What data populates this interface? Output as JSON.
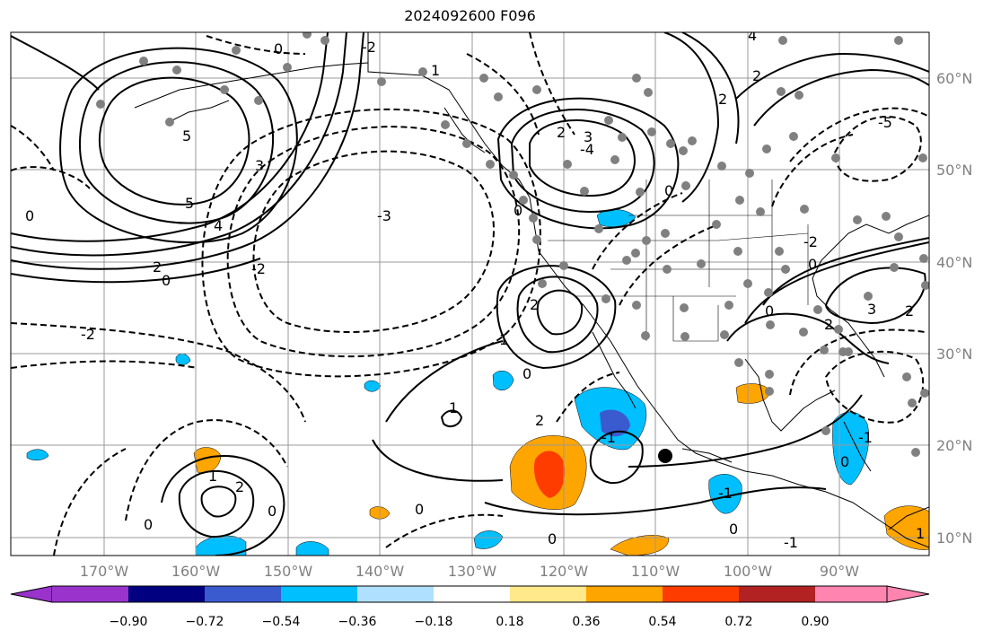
{
  "title": "2024092600 F096",
  "map": {
    "longitude_labels": [
      "170°W",
      "160°W",
      "150°W",
      "140°W",
      "130°W",
      "120°W",
      "110°W",
      "100°W",
      "90°W"
    ],
    "latitude_labels": [
      "60°N",
      "50°N",
      "40°N",
      "30°N",
      "20°N",
      "10°N"
    ],
    "contour_labels": [
      "0",
      "-1",
      "-2",
      "-3",
      "-4",
      "-5",
      "1",
      "2",
      "3",
      "4",
      "5"
    ],
    "marker": "current-position"
  },
  "colorbar": {
    "tick_labels": [
      "−0.90",
      "−0.72",
      "−0.54",
      "−0.36",
      "−0.18",
      "0.18",
      "0.36",
      "0.54",
      "0.72",
      "0.90"
    ],
    "colors": [
      "#9933cc",
      "#000080",
      "#3a5bd0",
      "#00bfff",
      "#b0e0ff",
      "#ffffff",
      "#ffe98a",
      "#ffa500",
      "#ff3c00",
      "#b22222",
      "#ff85b0"
    ]
  },
  "colors": {
    "grid": "#999999",
    "coast": "#000000",
    "stations": "#808080",
    "positive_shade": "#ffa500",
    "negative_shade": "#00bfff"
  }
}
